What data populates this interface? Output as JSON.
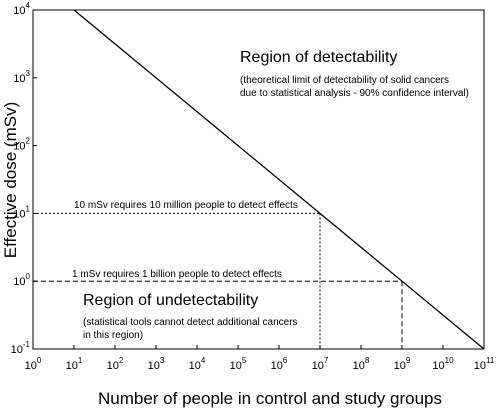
{
  "chart_data": {
    "type": "line",
    "xscale": "log",
    "yscale": "log",
    "xlim": [
      1,
      100000000000
    ],
    "ylim": [
      0.1,
      10000
    ],
    "xlabel": "Number of people in control and study groups",
    "ylabel": "Effective dose (mSv)",
    "x_ticks": [
      {
        "base": "10",
        "exp": "0"
      },
      {
        "base": "10",
        "exp": "1"
      },
      {
        "base": "10",
        "exp": "2"
      },
      {
        "base": "10",
        "exp": "3"
      },
      {
        "base": "10",
        "exp": "4"
      },
      {
        "base": "10",
        "exp": "5"
      },
      {
        "base": "10",
        "exp": "6"
      },
      {
        "base": "10",
        "exp": "7"
      },
      {
        "base": "10",
        "exp": "8"
      },
      {
        "base": "10",
        "exp": "9"
      },
      {
        "base": "10",
        "exp": "10"
      },
      {
        "base": "10",
        "exp": "11"
      }
    ],
    "y_ticks": [
      {
        "base": "10",
        "exp": "-1"
      },
      {
        "base": "10",
        "exp": "0"
      },
      {
        "base": "10",
        "exp": "1"
      },
      {
        "base": "10",
        "exp": "2"
      },
      {
        "base": "10",
        "exp": "3"
      },
      {
        "base": "10",
        "exp": "4"
      }
    ],
    "series": [
      {
        "x": [
          10,
          100000000000
        ],
        "y": [
          10000,
          0.1
        ]
      }
    ],
    "reference_lines": [
      {
        "x": 10000000,
        "y": 10,
        "label": "10 mSv requires 10 million people to detect effects",
        "style": "dotted"
      },
      {
        "x": 1000000000,
        "y": 1,
        "label": "1 mSv requires 1 billion people to detect effects",
        "style": "dashed"
      }
    ],
    "regions": {
      "detectability": {
        "title": "Region of detectability",
        "note_lines": [
          "(theoretical limit of detectability of solid cancers",
          "due to statistical analysis - 90% confidence interval)"
        ]
      },
      "undetectability": {
        "title": "Region of undetectability",
        "note_lines": [
          "(statistical tools cannot detect additional cancers",
          "in this region)"
        ]
      }
    },
    "grid": false,
    "legend": "none"
  },
  "colors": {
    "line": "#000000",
    "text": "#000000",
    "background": "#ffffff"
  }
}
